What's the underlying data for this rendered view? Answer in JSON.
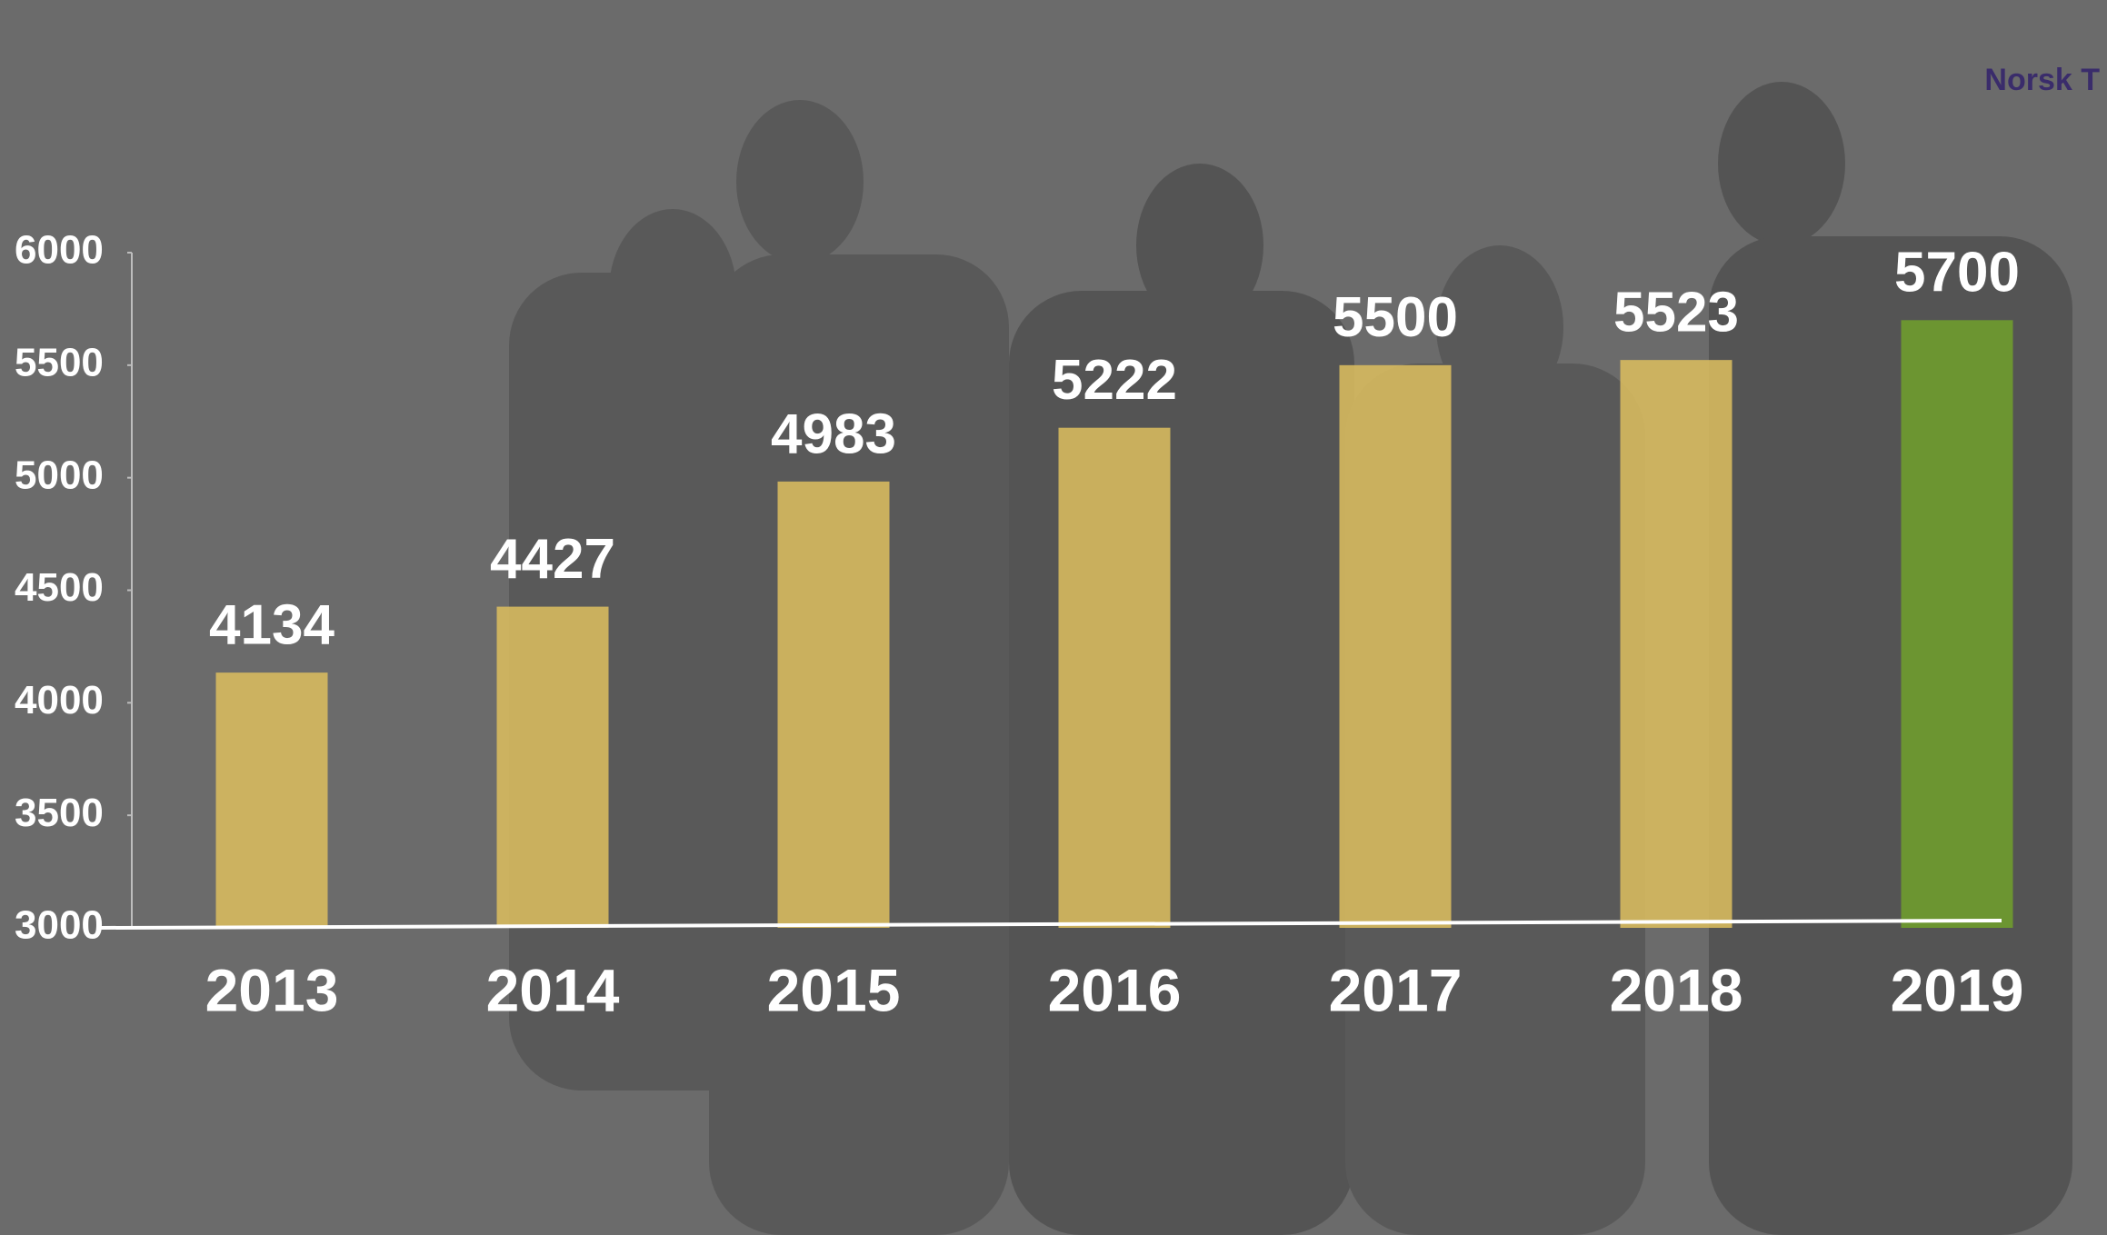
{
  "chart_data": {
    "type": "bar",
    "logo": "Norsk T",
    "categories": [
      "2013",
      "2014",
      "2015",
      "2016",
      "2017",
      "2018",
      "2019"
    ],
    "values": [
      4134,
      4427,
      4983,
      5222,
      5500,
      5523,
      5700
    ],
    "colors": [
      "#d9bc5f",
      "#d9bc5f",
      "#d9bc5f",
      "#d9bc5f",
      "#d9bc5f",
      "#d9bc5f",
      "#6f9e2c"
    ],
    "ylim": [
      3000,
      6000
    ],
    "yticks": [
      3000,
      3500,
      4000,
      4500,
      5000,
      5500,
      6000
    ]
  }
}
